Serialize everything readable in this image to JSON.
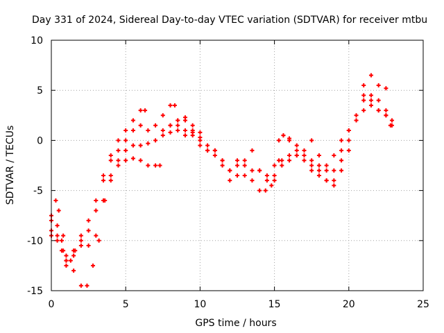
{
  "chart_data": {
    "type": "scatter",
    "title": "Day 331 of 2024, Sidereal Day-to-day VTEC variation (SDTVAR) for receiver mtbu",
    "xlabel": "GPS time / hours",
    "ylabel": "SDTVAR / TECUs",
    "xlim": [
      0,
      25
    ],
    "ylim": [
      -15,
      10
    ],
    "xticks": [
      "0",
      "5",
      "10",
      "15",
      "20",
      "25"
    ],
    "yticks": [
      "-15",
      "-10",
      "-5",
      "0",
      "5",
      "10"
    ],
    "grid": true,
    "marker": "+",
    "color": "#ff0000",
    "series": [
      {
        "values": [
          [
            0,
            -7.5
          ],
          [
            0.3,
            -6
          ],
          [
            0.5,
            -7
          ],
          [
            0.8,
            -9.5
          ],
          [
            1.0,
            -11.5
          ],
          [
            1.3,
            -12
          ],
          [
            1.6,
            -11
          ],
          [
            2.0,
            -9.5
          ],
          [
            2.5,
            -8
          ],
          [
            3.0,
            -6
          ],
          [
            3.5,
            -3.5
          ],
          [
            4.0,
            -1.5
          ],
          [
            4.5,
            0
          ],
          [
            5.0,
            1
          ],
          [
            5.5,
            2
          ],
          [
            6.0,
            3
          ],
          [
            6.3,
            3
          ]
        ]
      },
      {
        "values": [
          [
            0,
            -8
          ],
          [
            0.4,
            -8.5
          ],
          [
            0.7,
            -10
          ],
          [
            1.0,
            -12
          ],
          [
            1.5,
            -11
          ],
          [
            2.0,
            -10
          ],
          [
            2.5,
            -9
          ],
          [
            3.0,
            -7
          ],
          [
            3.5,
            -4
          ],
          [
            4.0,
            -2
          ],
          [
            4.5,
            -1
          ],
          [
            5.0,
            0
          ],
          [
            5.5,
            1
          ],
          [
            6.0,
            1.5
          ],
          [
            6.5,
            1
          ],
          [
            7.0,
            1.5
          ],
          [
            7.5,
            2.5
          ],
          [
            8.0,
            3.5
          ],
          [
            8.3,
            3.5
          ]
        ]
      },
      {
        "values": [
          [
            0,
            -9
          ],
          [
            0.4,
            -9.5
          ],
          [
            0.8,
            -11
          ],
          [
            1.0,
            -12.5
          ],
          [
            1.5,
            -11.5
          ],
          [
            2.0,
            -10.5
          ],
          [
            2.5,
            -10.5
          ],
          [
            3.0,
            -9.5
          ],
          [
            3.5,
            -6
          ],
          [
            4.0,
            -3.5
          ],
          [
            4.5,
            -2
          ],
          [
            5.0,
            -1
          ],
          [
            5.5,
            -0.5
          ],
          [
            6.0,
            -0.5
          ],
          [
            6.5,
            -0.3
          ],
          [
            7.0,
            0
          ],
          [
            7.5,
            1
          ],
          [
            8.0,
            1.5
          ],
          [
            8.5,
            2
          ],
          [
            9.0,
            1
          ],
          [
            9.5,
            0.5
          ],
          [
            10.0,
            -0.5
          ]
        ]
      },
      {
        "values": [
          [
            0,
            -9.5
          ],
          [
            0.4,
            -10
          ],
          [
            0.7,
            -11
          ],
          [
            1.0,
            -12
          ],
          [
            1.5,
            -13
          ],
          [
            2.0,
            -14.5
          ],
          [
            2.4,
            -14.5
          ],
          [
            2.8,
            -12.5
          ],
          [
            3.2,
            -10
          ],
          [
            3.6,
            -6
          ],
          [
            4.0,
            -4
          ],
          [
            4.5,
            -2.5
          ],
          [
            5.0,
            -2
          ],
          [
            5.5,
            -1.8
          ],
          [
            6.0,
            -2
          ],
          [
            6.5,
            -2.5
          ],
          [
            7.0,
            -2.5
          ],
          [
            7.3,
            -2.5
          ]
        ]
      },
      {
        "values": [
          [
            7.5,
            0.5
          ],
          [
            8.0,
            0.8
          ],
          [
            8.5,
            1
          ],
          [
            9.0,
            0.5
          ],
          [
            9.5,
            0.8
          ],
          [
            10.0,
            0.3
          ],
          [
            10.5,
            -1
          ],
          [
            11.0,
            -1
          ],
          [
            11.5,
            -2
          ],
          [
            12.0,
            -3
          ],
          [
            12.5,
            -2.5
          ],
          [
            13.0,
            -3.5
          ],
          [
            13.5,
            -4
          ],
          [
            14.0,
            -5
          ],
          [
            14.4,
            -5
          ],
          [
            14.8,
            -4.5
          ],
          [
            15.0,
            -3.5
          ],
          [
            15.5,
            -2.5
          ],
          [
            16.0,
            -2
          ],
          [
            16.5,
            -1.5
          ],
          [
            17.0,
            -2
          ],
          [
            17.5,
            -3
          ],
          [
            18.0,
            -2.5
          ],
          [
            18.5,
            -2.5
          ],
          [
            19.0,
            -1.5
          ],
          [
            19.5,
            0
          ],
          [
            20.0,
            1
          ],
          [
            20.5,
            2
          ],
          [
            21.0,
            3
          ],
          [
            21.5,
            3.5
          ],
          [
            22.0,
            3
          ],
          [
            22.5,
            2.5
          ],
          [
            22.9,
            1.5
          ]
        ]
      },
      {
        "values": [
          [
            8.0,
            1.5
          ],
          [
            8.5,
            2
          ],
          [
            9.0,
            2
          ],
          [
            9.5,
            1
          ],
          [
            10.0,
            0.8
          ],
          [
            10.5,
            -0.5
          ],
          [
            11.0,
            -1
          ],
          [
            11.5,
            -2
          ],
          [
            12.0,
            -3
          ],
          [
            12.5,
            -2
          ],
          [
            13.0,
            -2
          ],
          [
            13.5,
            -3
          ],
          [
            14.0,
            -3
          ],
          [
            14.5,
            -3.5
          ],
          [
            15.0,
            -2.5
          ],
          [
            15.5,
            -2
          ],
          [
            16.0,
            -1.5
          ],
          [
            16.5,
            -1
          ],
          [
            17.0,
            -1.5
          ],
          [
            17.5,
            -2.5
          ],
          [
            18.0,
            -3.5
          ],
          [
            18.5,
            -4
          ],
          [
            19.0,
            -3
          ],
          [
            19.5,
            -1
          ],
          [
            20.0,
            1
          ],
          [
            20.5,
            2.5
          ],
          [
            21.0,
            4
          ],
          [
            21.5,
            4.5
          ],
          [
            22.0,
            4
          ],
          [
            22.5,
            3
          ],
          [
            22.9,
            2
          ]
        ]
      },
      {
        "values": [
          [
            8.5,
            1.5
          ],
          [
            9.0,
            2.3
          ],
          [
            9.5,
            1.5
          ],
          [
            10.0,
            0
          ],
          [
            10.5,
            -1
          ],
          [
            11.0,
            -1.5
          ],
          [
            11.5,
            -2.5
          ],
          [
            12.0,
            -4
          ],
          [
            12.5,
            -3.5
          ],
          [
            13.0,
            -2.5
          ],
          [
            13.5,
            -1
          ],
          [
            14.0,
            -3
          ],
          [
            14.5,
            -4
          ],
          [
            15.0,
            -4
          ],
          [
            15.3,
            -2
          ],
          [
            15.6,
            0.5
          ],
          [
            16.0,
            0.2
          ],
          [
            16.5,
            -1.5
          ],
          [
            17.0,
            -1.5
          ],
          [
            17.5,
            0
          ],
          [
            18.0,
            -1.5
          ],
          [
            18.5,
            -3
          ],
          [
            19.0,
            -4
          ],
          [
            19.5,
            -3
          ],
          [
            20.0,
            -1
          ],
          [
            20.5,
            2
          ],
          [
            21.0,
            4.5
          ],
          [
            21.5,
            4
          ],
          [
            22.0,
            3
          ],
          [
            22.5,
            2.5
          ],
          [
            22.8,
            1.5
          ]
        ]
      },
      {
        "values": [
          [
            15.3,
            0
          ],
          [
            15.6,
            0.5
          ],
          [
            16.0,
            0
          ],
          [
            16.5,
            -0.5
          ],
          [
            17.0,
            -1
          ],
          [
            17.5,
            -2
          ],
          [
            18.0,
            -3
          ],
          [
            18.5,
            -4
          ],
          [
            19.0,
            -4.5
          ],
          [
            19.5,
            -2
          ],
          [
            20.0,
            0
          ],
          [
            20.5,
            2
          ],
          [
            21.0,
            5.5
          ],
          [
            21.5,
            6.5
          ],
          [
            22.0,
            5.5
          ],
          [
            22.5,
            5.2
          ]
        ]
      }
    ]
  }
}
